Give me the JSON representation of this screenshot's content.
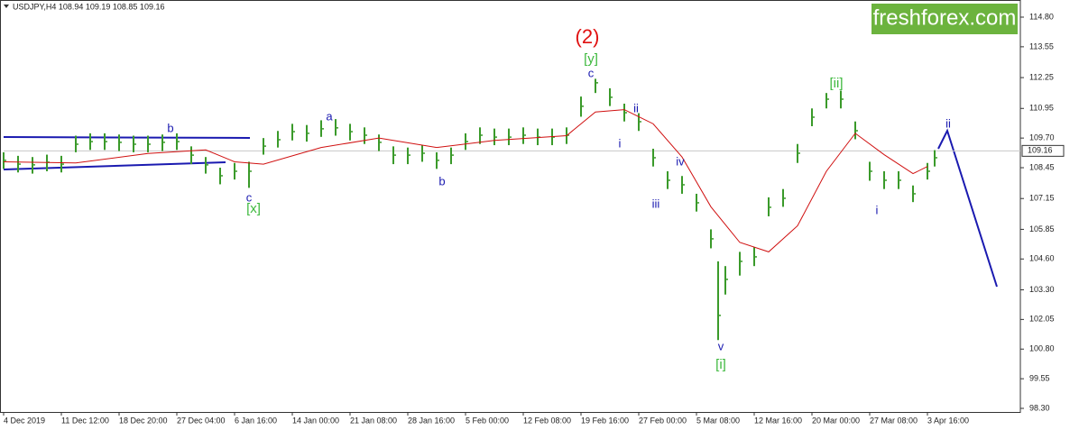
{
  "chart_data": {
    "type": "candlestick",
    "title": "USDJPY,H4  108.94 109.19 108.85 109.16",
    "brand": "freshforex.com",
    "ylim": [
      98.3,
      114.8
    ],
    "yticks": [
      {
        "value": 114.8,
        "label": "114.80"
      },
      {
        "value": 113.55,
        "label": "113.55"
      },
      {
        "value": 112.25,
        "label": "112.25"
      },
      {
        "value": 110.95,
        "label": "110.95"
      },
      {
        "value": 109.7,
        "label": "109.70"
      },
      {
        "value": 108.45,
        "label": "108.45"
      },
      {
        "value": 107.15,
        "label": "107.15"
      },
      {
        "value": 105.85,
        "label": "105.85"
      },
      {
        "value": 104.6,
        "label": "104.60"
      },
      {
        "value": 103.3,
        "label": "103.30"
      },
      {
        "value": 102.05,
        "label": "102.05"
      },
      {
        "value": 100.8,
        "label": "100.80"
      },
      {
        "value": 99.55,
        "label": "99.55"
      },
      {
        "value": 98.3,
        "label": "98.30"
      }
    ],
    "xlim": [
      0,
      281.75
    ],
    "xticks": [
      {
        "value": 0,
        "label": "4 Dec 2019"
      },
      {
        "value": 16,
        "label": "11 Dec 12:00"
      },
      {
        "value": 32,
        "label": "18 Dec 20:00"
      },
      {
        "value": 48,
        "label": "27 Dec 04:00"
      },
      {
        "value": 64,
        "label": "6 Jan 16:00"
      },
      {
        "value": 80,
        "label": "14 Jan 00:00"
      },
      {
        "value": 96,
        "label": "21 Jan 08:00"
      },
      {
        "value": 112,
        "label": "28 Jan 16:00"
      },
      {
        "value": 128,
        "label": "5 Feb 00:00"
      },
      {
        "value": 144,
        "label": "12 Feb 08:00"
      },
      {
        "value": 160,
        "label": "19 Feb 16:00"
      },
      {
        "value": 176,
        "label": "27 Feb 00:00"
      },
      {
        "value": 192,
        "label": "5 Mar 08:00"
      },
      {
        "value": 208,
        "label": "12 Mar 16:00"
      },
      {
        "value": 224,
        "label": "20 Mar 00:00"
      },
      {
        "value": 240,
        "label": "27 Mar 08:00"
      },
      {
        "value": 256,
        "label": "3 Apr 16:00"
      }
    ],
    "last_price": 109.16,
    "price": {
      "color": "#3a9a2a",
      "x": [
        0,
        4,
        8,
        12,
        16,
        20,
        24,
        28,
        32,
        36,
        40,
        44,
        48,
        52,
        56,
        60,
        64,
        68,
        72,
        76,
        80,
        84,
        88,
        92,
        96,
        100,
        104,
        108,
        112,
        116,
        120,
        124,
        128,
        132,
        136,
        140,
        144,
        148,
        152,
        156,
        160,
        164,
        168,
        172,
        176,
        180,
        184,
        188,
        192,
        196,
        198,
        200,
        204,
        208,
        212,
        216,
        220,
        224,
        228,
        232,
        236,
        240,
        244,
        248,
        252,
        256,
        258
      ],
      "values": [
        108.76,
        108.6,
        108.57,
        108.68,
        108.6,
        109.44,
        109.55,
        109.55,
        109.52,
        109.44,
        109.44,
        109.52,
        109.55,
        108.98,
        108.57,
        108.11,
        108.3,
        108.3,
        109.36,
        109.63,
        109.97,
        109.9,
        110.09,
        110.13,
        109.97,
        109.82,
        109.52,
        108.98,
        108.98,
        109.06,
        108.76,
        108.98,
        109.55,
        109.82,
        109.74,
        109.74,
        109.82,
        109.74,
        109.74,
        109.82,
        111.04,
        112.03,
        111.42,
        110.77,
        110.39,
        108.87,
        107.92,
        107.73,
        106.97,
        105.45,
        102.22,
        103.74,
        104.5,
        104.69,
        106.78,
        107.16,
        109.06,
        110.58,
        111.34,
        111.34,
        110.01,
        108.3,
        107.92,
        107.92,
        107.35,
        108.3,
        108.87
      ],
      "high": [
        109.1,
        108.95,
        108.9,
        109.0,
        108.95,
        109.8,
        109.9,
        109.9,
        109.85,
        109.8,
        109.8,
        109.85,
        109.9,
        109.35,
        108.9,
        108.45,
        108.65,
        108.7,
        109.7,
        110.0,
        110.3,
        110.25,
        110.45,
        110.5,
        110.3,
        110.15,
        109.85,
        109.35,
        109.3,
        109.4,
        109.1,
        109.3,
        109.9,
        110.15,
        110.1,
        110.1,
        110.15,
        110.1,
        110.1,
        110.15,
        111.45,
        112.2,
        111.8,
        111.15,
        110.75,
        109.25,
        108.3,
        108.1,
        107.35,
        105.85,
        104.5,
        104.3,
        104.9,
        105.1,
        107.2,
        107.55,
        109.45,
        110.95,
        111.6,
        111.7,
        110.4,
        108.7,
        108.3,
        108.3,
        107.7,
        108.65,
        109.19
      ],
      "low": [
        108.4,
        108.25,
        108.2,
        108.3,
        108.25,
        109.1,
        109.2,
        109.2,
        109.15,
        109.1,
        109.1,
        109.15,
        109.2,
        108.6,
        108.2,
        107.75,
        107.95,
        107.6,
        109.0,
        109.3,
        109.6,
        109.55,
        109.75,
        109.8,
        109.6,
        109.45,
        109.15,
        108.6,
        108.6,
        108.7,
        108.4,
        108.6,
        109.2,
        109.45,
        109.4,
        109.4,
        109.45,
        109.4,
        109.4,
        109.45,
        110.6,
        111.6,
        111.05,
        110.4,
        110.0,
        108.5,
        107.55,
        107.35,
        106.6,
        105.05,
        101.18,
        103.1,
        103.9,
        104.3,
        106.4,
        106.8,
        108.65,
        110.2,
        110.95,
        110.95,
        109.65,
        107.9,
        107.55,
        107.55,
        107.0,
        107.95,
        108.5
      ]
    },
    "ma": {
      "color": "#d01010",
      "x": [
        0,
        20,
        40,
        56,
        64,
        72,
        88,
        104,
        120,
        136,
        156,
        164,
        172,
        180,
        188,
        196,
        204,
        212,
        220,
        228,
        236,
        244,
        252,
        256
      ],
      "values": [
        108.7,
        108.65,
        109.05,
        109.2,
        108.7,
        108.6,
        109.3,
        109.7,
        109.3,
        109.6,
        109.8,
        110.8,
        110.9,
        110.3,
        108.9,
        106.8,
        105.3,
        104.9,
        106.0,
        108.3,
        109.9,
        109.0,
        108.2,
        108.5
      ]
    },
    "annotations": [
      {
        "text": "(2)",
        "color": "#e01010"
      },
      {
        "text": "[y]",
        "color": "#3cb83c"
      },
      {
        "text": "c",
        "color": "#1a1ab0"
      },
      {
        "text": "b",
        "color": "#1a1ab0"
      },
      {
        "text": "a",
        "color": "#1a1ab0"
      },
      {
        "text": "c",
        "color": "#1a1ab0"
      },
      {
        "text": "[x]",
        "color": "#3cb83c"
      },
      {
        "text": "b",
        "color": "#1a1ab0"
      },
      {
        "text": "ii",
        "color": "#1a1ab0"
      },
      {
        "text": "i",
        "color": "#1a1ab0"
      },
      {
        "text": "iii",
        "color": "#1a1ab0"
      },
      {
        "text": "iv",
        "color": "#1a1ab0"
      },
      {
        "text": "v",
        "color": "#1a1ab0"
      },
      {
        "text": "[i]",
        "color": "#3cb83c"
      },
      {
        "text": "[ii]",
        "color": "#3cb83c"
      },
      {
        "text": "i",
        "color": "#1a1ab0"
      },
      {
        "text": "ii",
        "color": "#1a1ab0"
      }
    ]
  }
}
